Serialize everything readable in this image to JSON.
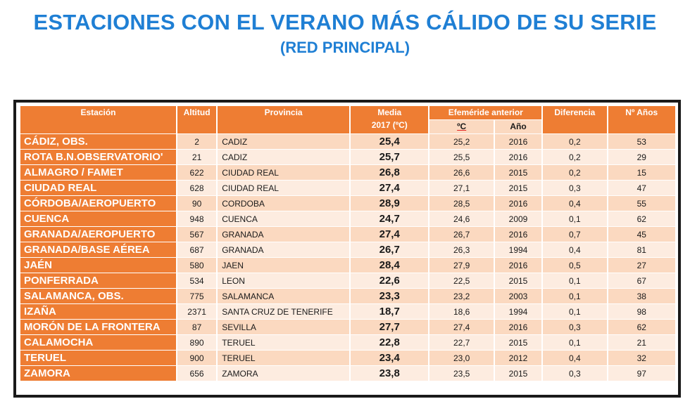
{
  "title": "ESTACIONES CON EL VERANO MÁS CÁLIDO DE SU SERIE",
  "subtitle": "(RED PRINCIPAL)",
  "headers": {
    "estacion": "Estación",
    "altitud": "Altitud",
    "provincia": "Provincia",
    "media_line1": "Media",
    "media_line2": "2017 (ºC)",
    "efemeride": "Efeméride anterior",
    "efemeride_c": "ºC",
    "efemeride_ano": "Año",
    "diferencia": "Diferencia",
    "anos": "Nº Años"
  },
  "rows": [
    {
      "estacion": "CÁDIZ, OBS.",
      "altitud": "2",
      "provincia": "CADIZ",
      "media": "25,4",
      "ef_c": "25,2",
      "ef_ano": "2016",
      "diferencia": "0,2",
      "anos": "53"
    },
    {
      "estacion": "ROTA B.N.OBSERVATORIO'",
      "altitud": "21",
      "provincia": "CADIZ",
      "media": "25,7",
      "ef_c": "25,5",
      "ef_ano": "2016",
      "diferencia": "0,2",
      "anos": "29"
    },
    {
      "estacion": "ALMAGRO / FAMET",
      "altitud": "622",
      "provincia": "CIUDAD REAL",
      "media": "26,8",
      "ef_c": "26,6",
      "ef_ano": "2015",
      "diferencia": "0,2",
      "anos": "15"
    },
    {
      "estacion": "CIUDAD REAL",
      "altitud": "628",
      "provincia": "CIUDAD REAL",
      "media": "27,4",
      "ef_c": "27,1",
      "ef_ano": "2015",
      "diferencia": "0,3",
      "anos": "47"
    },
    {
      "estacion": "CÓRDOBA/AEROPUERTO",
      "altitud": "90",
      "provincia": "CORDOBA",
      "media": "28,9",
      "ef_c": "28,5",
      "ef_ano": "2016",
      "diferencia": "0,4",
      "anos": "55"
    },
    {
      "estacion": "CUENCA",
      "altitud": "948",
      "provincia": "CUENCA",
      "media": "24,7",
      "ef_c": "24,6",
      "ef_ano": "2009",
      "diferencia": "0,1",
      "anos": "62"
    },
    {
      "estacion": "GRANADA/AEROPUERTO",
      "altitud": "567",
      "provincia": "GRANADA",
      "media": "27,4",
      "ef_c": "26,7",
      "ef_ano": "2016",
      "diferencia": "0,7",
      "anos": "45"
    },
    {
      "estacion": "GRANADA/BASE AÉREA",
      "altitud": "687",
      "provincia": "GRANADA",
      "media": "26,7",
      "ef_c": "26,3",
      "ef_ano": "1994",
      "diferencia": "0,4",
      "anos": "81"
    },
    {
      "estacion": "JAÉN",
      "altitud": "580",
      "provincia": "JAEN",
      "media": "28,4",
      "ef_c": "27,9",
      "ef_ano": "2016",
      "diferencia": "0,5",
      "anos": "27"
    },
    {
      "estacion": "PONFERRADA",
      "altitud": "534",
      "provincia": "LEON",
      "media": "22,6",
      "ef_c": "22,5",
      "ef_ano": "2015",
      "diferencia": "0,1",
      "anos": "67"
    },
    {
      "estacion": "SALAMANCA, OBS.",
      "altitud": "775",
      "provincia": "SALAMANCA",
      "media": "23,3",
      "ef_c": "23,2",
      "ef_ano": "2003",
      "diferencia": "0,1",
      "anos": "38"
    },
    {
      "estacion": "IZAÑA",
      "altitud": "2371",
      "provincia": "SANTA CRUZ DE TENERIFE",
      "media": "18,7",
      "ef_c": "18,6",
      "ef_ano": "1994",
      "diferencia": "0,1",
      "anos": "98"
    },
    {
      "estacion": "MORÓN DE LA FRONTERA",
      "altitud": "87",
      "provincia": "SEVILLA",
      "media": "27,7",
      "ef_c": "27,4",
      "ef_ano": "2016",
      "diferencia": "0,3",
      "anos": "62"
    },
    {
      "estacion": "CALAMOCHA",
      "altitud": "890",
      "provincia": "TERUEL",
      "media": "22,8",
      "ef_c": "22,7",
      "ef_ano": "2015",
      "diferencia": "0,1",
      "anos": "21"
    },
    {
      "estacion": "TERUEL",
      "altitud": "900",
      "provincia": "TERUEL",
      "media": "23,4",
      "ef_c": "23,0",
      "ef_ano": "2012",
      "diferencia": "0,4",
      "anos": "32"
    },
    {
      "estacion": "ZAMORA",
      "altitud": "656",
      "provincia": "ZAMORA",
      "media": "23,8",
      "ef_c": "23,5",
      "ef_ano": "2015",
      "diferencia": "0,3",
      "anos": "97"
    }
  ]
}
